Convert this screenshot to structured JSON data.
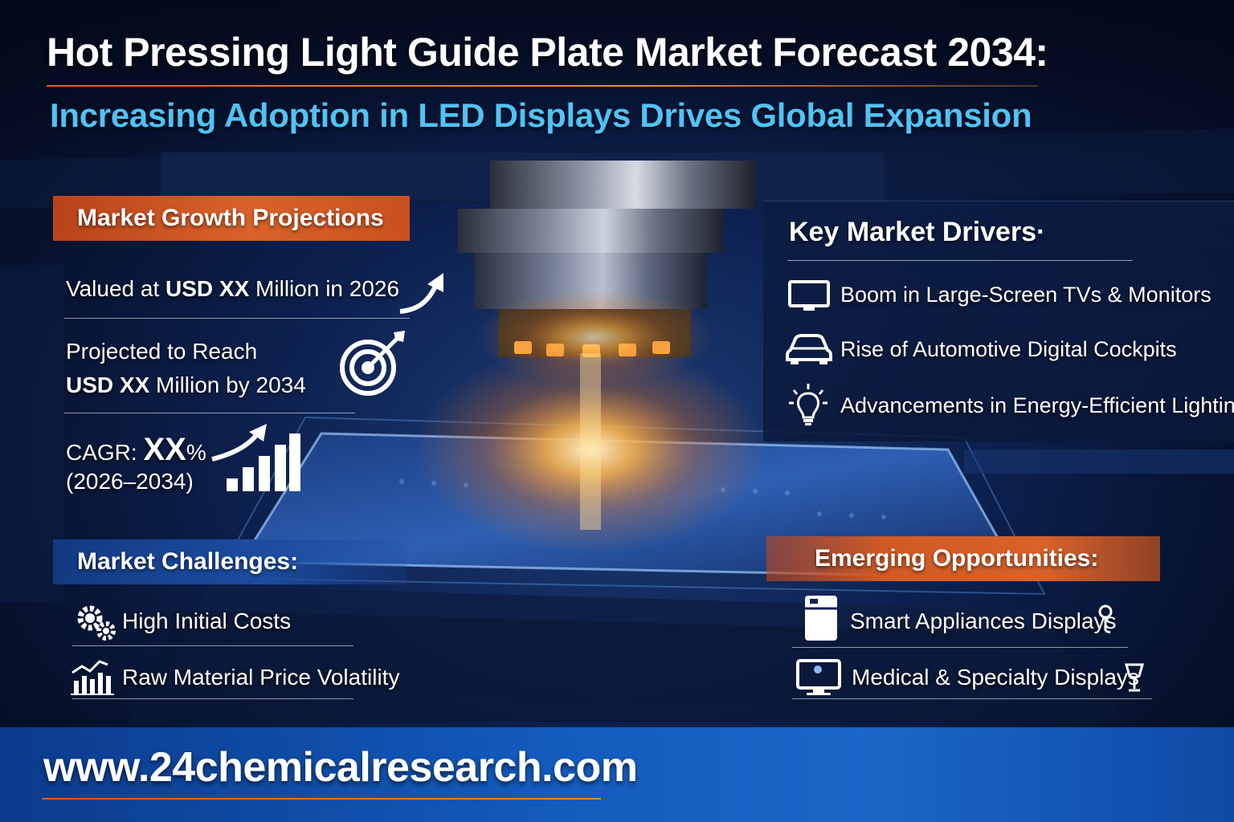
{
  "header": {
    "title": "Hot Pressing Light Guide Plate Market Forecast 2034:",
    "subtitle": "Increasing Adoption in LED Displays Drives Global Expansion"
  },
  "growth": {
    "heading": "Market Growth Projections",
    "valued_prefix": "Valued at ",
    "valued_bold": "USD XX",
    "valued_suffix": " Million in 2026",
    "projected_line1": "Projected to Reach",
    "projected_bold": "USD XX",
    "projected_suffix": " Million by 2034",
    "cagr_label": "CAGR: ",
    "cagr_value": "XX",
    "cagr_unit": "%",
    "cagr_period": "(2026–2034)"
  },
  "drivers": {
    "heading": "Key Market Drivers·",
    "items": [
      {
        "label": "Boom in Large-Screen TVs & Monitors",
        "icon": "monitor-icon"
      },
      {
        "label": "Rise of Automotive Digital Cockpits",
        "icon": "car-icon"
      },
      {
        "label": "Advancements in Energy-Efficient Lighting",
        "icon": "lightbulb-icon"
      }
    ]
  },
  "challenges": {
    "heading": "Market Challenges:",
    "items": [
      {
        "label": "High Initial Costs",
        "icon": "gears-icon"
      },
      {
        "label": "Raw Material Price Volatility",
        "icon": "price-chart-icon"
      }
    ]
  },
  "opportunities": {
    "heading": "Emerging Opportunities:",
    "items": [
      {
        "label": "Smart Appliances Displays",
        "icon": "appliance-icon"
      },
      {
        "label": "Medical & Specialty Displays",
        "icon": "display-icon"
      }
    ]
  },
  "footer": {
    "url": "www.24chemicalresearch.com"
  },
  "colors": {
    "accent_orange": "#d9622a",
    "subtitle_blue": "#4fc3f7",
    "banner_blue": "#1c4da0",
    "footer_blue": "#135bbd"
  }
}
